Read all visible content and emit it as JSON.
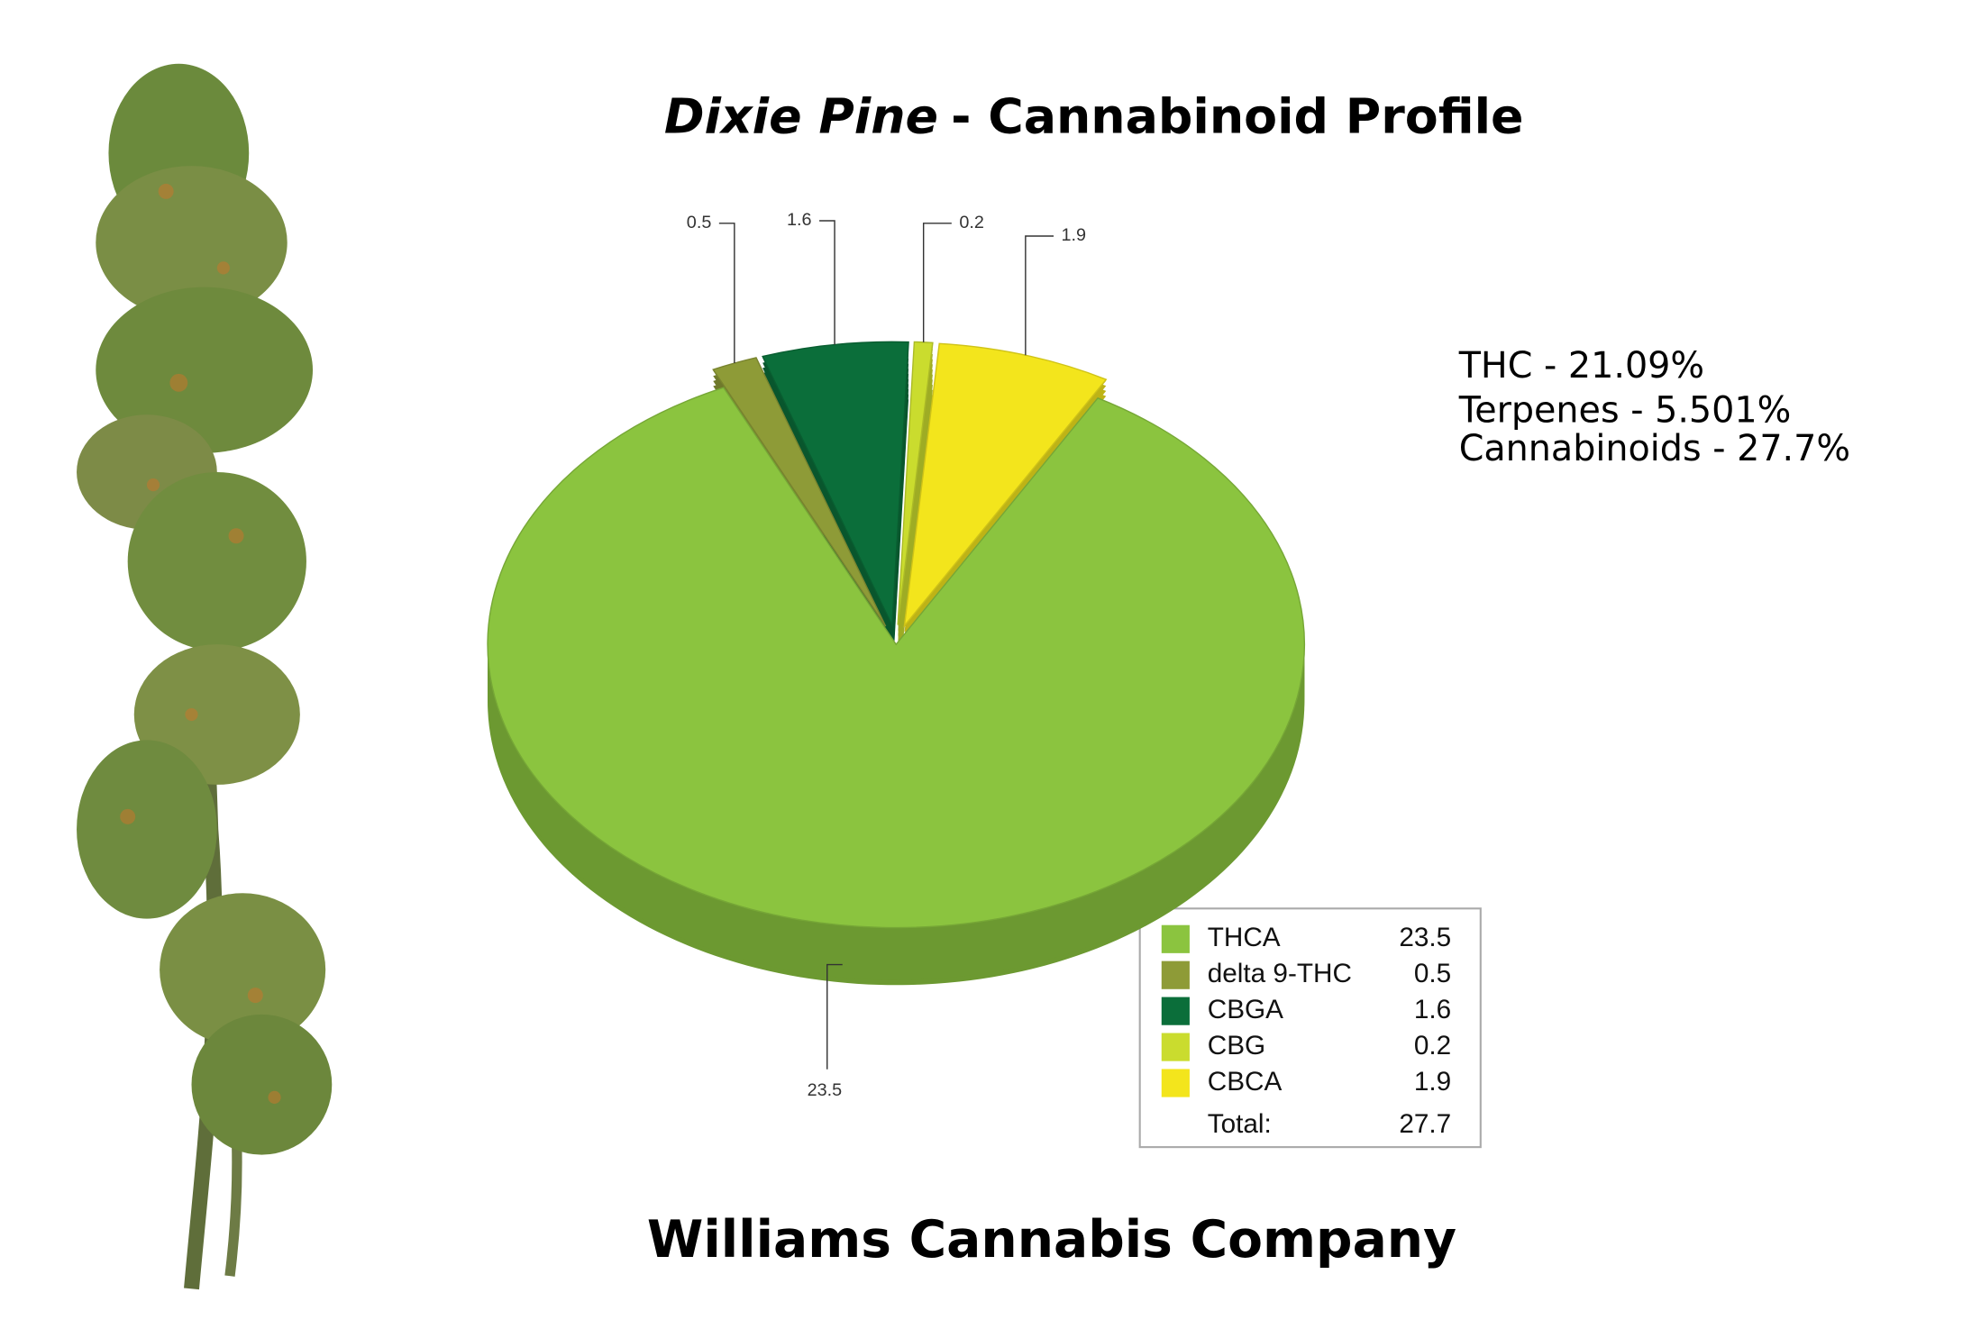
{
  "chart_data": {
    "type": "pie",
    "title": {
      "strain": "Dixie Pine",
      "text": "- Cannabinoid Profile"
    },
    "categories": [
      "THCA",
      "delta 9-THC",
      "CBGA",
      "CBG",
      "CBCA"
    ],
    "values": [
      23.5,
      0.5,
      1.6,
      0.2,
      1.9
    ],
    "colors": [
      "#8bc43f",
      "#8e9b37",
      "#0b6e3a",
      "#cadc2e",
      "#f3e51c"
    ],
    "total_label": "Total:",
    "total": 27.7,
    "notes": [
      "THC - 21.09%",
      "Terpenes - 5.501%",
      "Cannabinoids - 27.7%"
    ],
    "footer": "Williams Cannabis Company"
  }
}
